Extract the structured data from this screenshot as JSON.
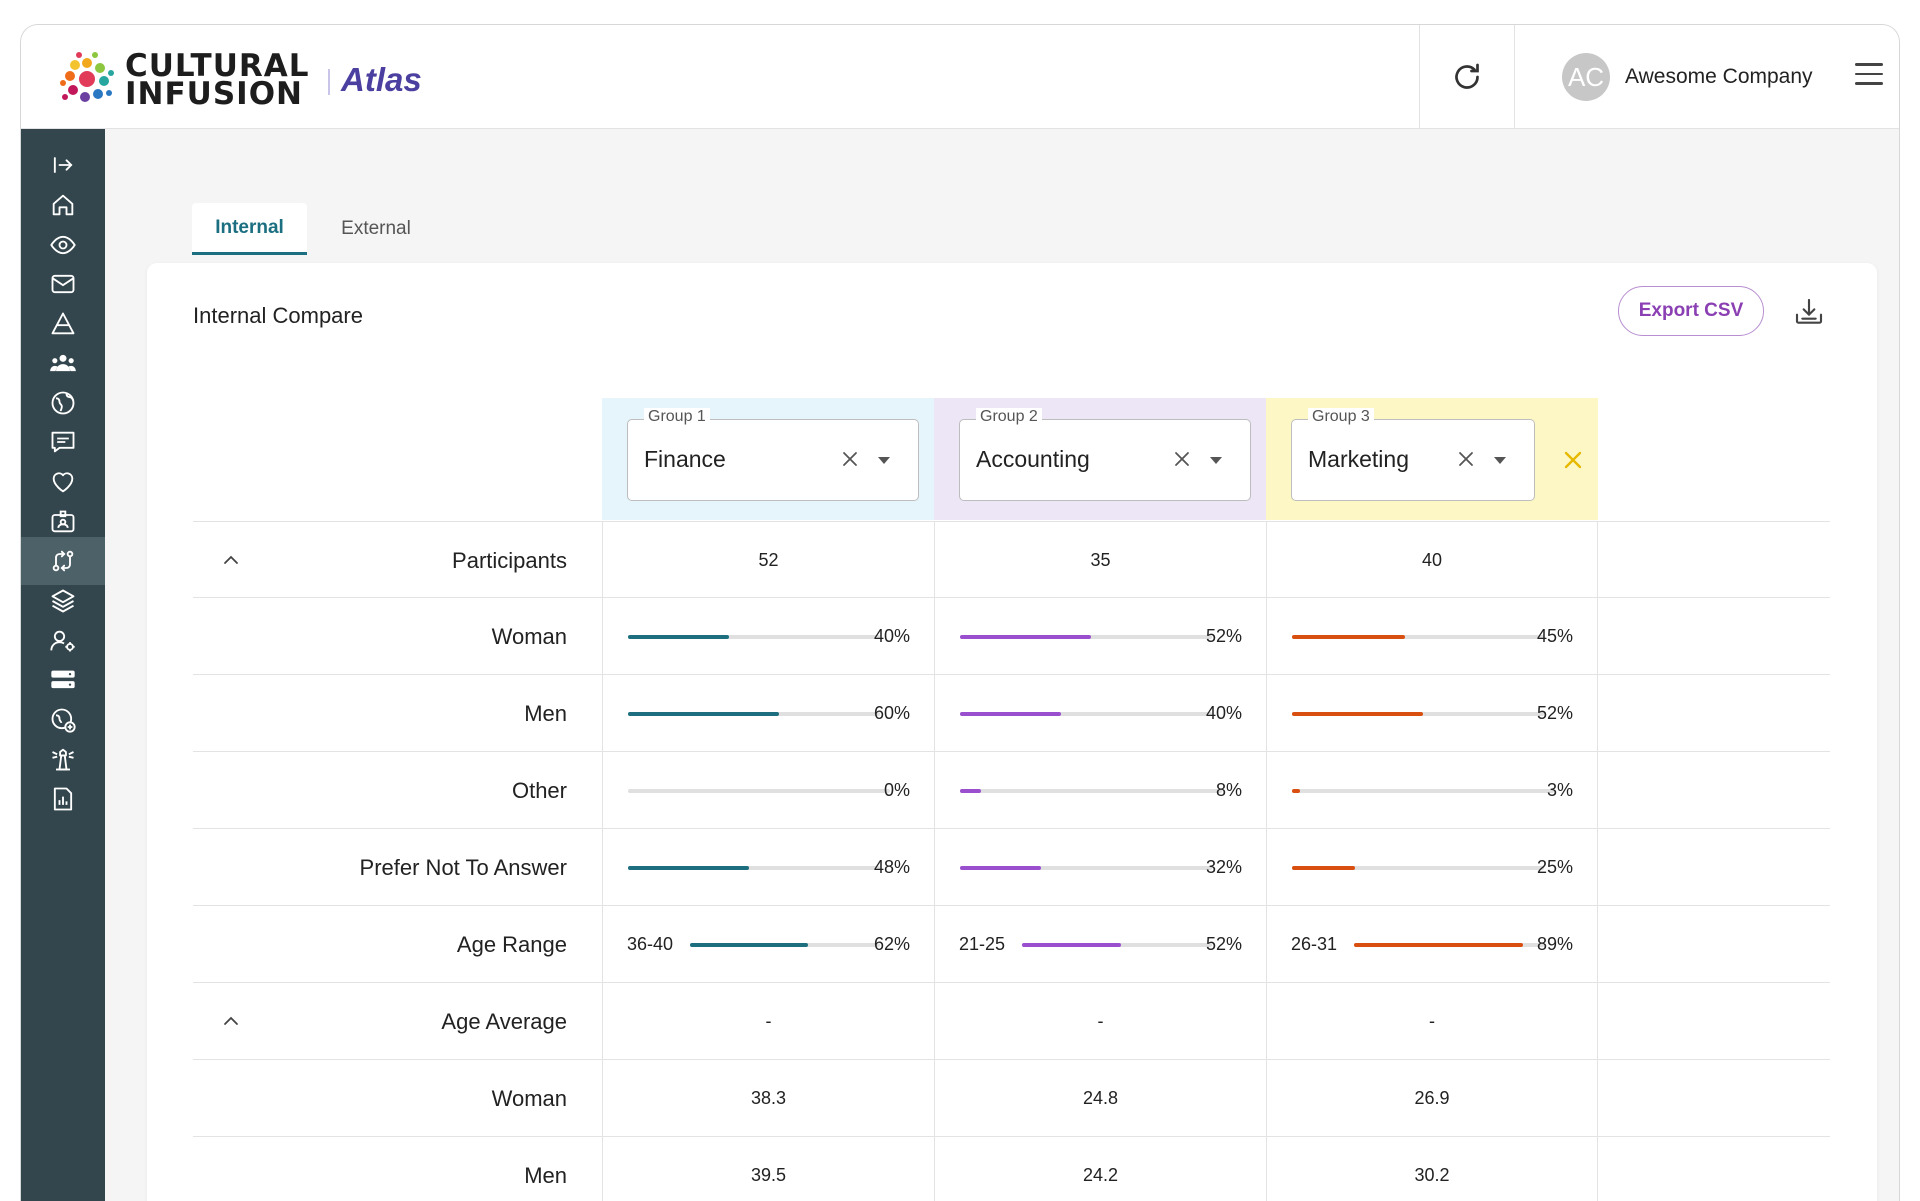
{
  "header": {
    "brand_line1": "CULTURAL",
    "brand_line2": "INFUSION",
    "product": "Atlas",
    "avatar_initials": "AC",
    "company": "Awesome Company"
  },
  "sidebar": {
    "items": [
      {
        "icon": "expand-sidebar-icon"
      },
      {
        "icon": "home-icon"
      },
      {
        "icon": "eye-icon"
      },
      {
        "icon": "mail-icon"
      },
      {
        "icon": "triangle-layers-icon"
      },
      {
        "icon": "users-group-icon"
      },
      {
        "icon": "globe-icon"
      },
      {
        "icon": "chat-icon"
      },
      {
        "icon": "heart-icon"
      },
      {
        "icon": "id-badge-icon"
      },
      {
        "icon": "compare-arrows-icon",
        "active": true
      },
      {
        "icon": "layers-icon"
      },
      {
        "icon": "user-settings-icon"
      },
      {
        "icon": "server-icon"
      },
      {
        "icon": "globe-plus-icon"
      },
      {
        "icon": "lighthouse-icon"
      },
      {
        "icon": "report-icon"
      }
    ]
  },
  "tabs": [
    {
      "label": "Internal",
      "active": true
    },
    {
      "label": "External",
      "active": false
    }
  ],
  "card": {
    "title": "Internal Compare",
    "export_label": "Export CSV"
  },
  "groups": [
    {
      "label": "Group 1",
      "value": "Finance",
      "bg": "#e6f4fb",
      "bar": "#1d6f80"
    },
    {
      "label": "Group 2",
      "value": "Accounting",
      "bg": "#ece6f6",
      "bar": "#9a4fcf"
    },
    {
      "label": "Group 3",
      "value": "Marketing",
      "bg": "#fdf7c6",
      "bar": "#d94f0f"
    }
  ],
  "rows": {
    "participants": {
      "label": "Participants",
      "values": [
        "52",
        "35",
        "40"
      ]
    },
    "woman": {
      "label": "Woman",
      "pcts": [
        "40%",
        "52%",
        "45%"
      ],
      "fractions": [
        0.4,
        0.52,
        0.45
      ]
    },
    "men": {
      "label": "Men",
      "pcts": [
        "60%",
        "40%",
        "52%"
      ],
      "fractions": [
        0.6,
        0.4,
        0.52
      ]
    },
    "other": {
      "label": "Other",
      "pcts": [
        "0%",
        "8%",
        "3%"
      ],
      "fractions": [
        0.0,
        0.08,
        0.03
      ]
    },
    "prefer": {
      "label": "Prefer Not To Answer",
      "pcts": [
        "48%",
        "32%",
        "25%"
      ],
      "fractions": [
        0.48,
        0.32,
        0.25
      ]
    },
    "age_range": {
      "label": "Age Range",
      "ranges": [
        "36-40",
        "21-25",
        "26-31"
      ],
      "pcts": [
        "62%",
        "52%",
        "89%"
      ],
      "fractions": [
        0.62,
        0.52,
        0.89
      ]
    },
    "age_average": {
      "label": "Age Average",
      "values": [
        "-",
        "-",
        "-"
      ]
    },
    "avg_woman": {
      "label": "Woman",
      "values": [
        "38.3",
        "24.8",
        "26.9"
      ]
    },
    "avg_men": {
      "label": "Men",
      "values": [
        "39.5",
        "24.2",
        "30.2"
      ]
    }
  }
}
